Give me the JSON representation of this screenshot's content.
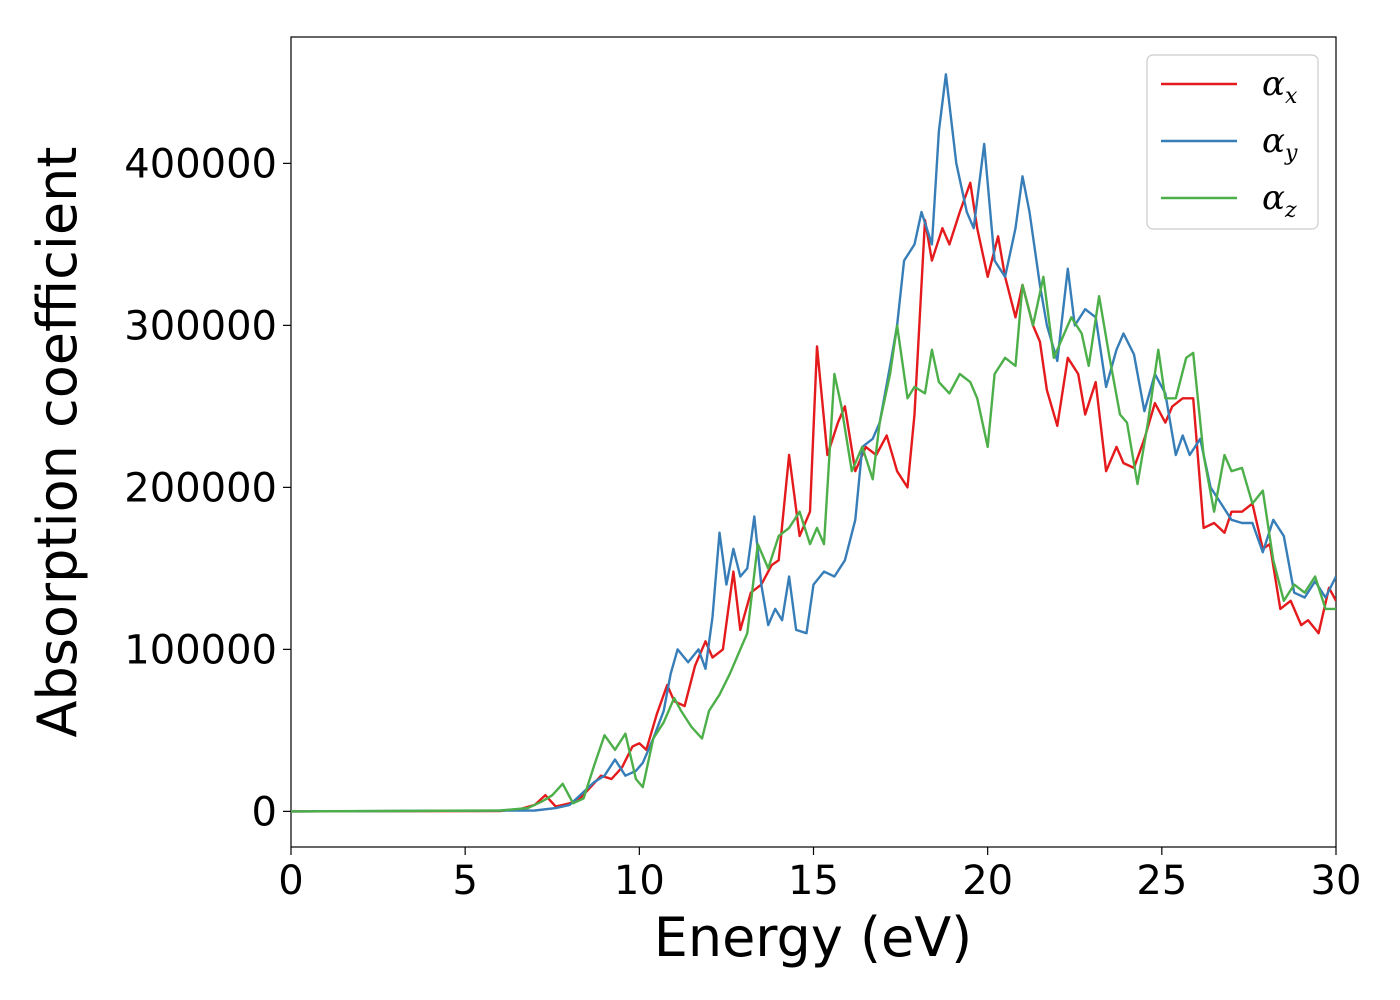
{
  "chart_data": {
    "type": "line",
    "title": "",
    "xlabel": "Energy (eV)",
    "ylabel": "Absorption coefficient",
    "xlim": [
      0,
      30
    ],
    "ylim": [
      -22000,
      478000
    ],
    "xticks": [
      0,
      5,
      10,
      15,
      20,
      25,
      30
    ],
    "xtick_labels": [
      "0",
      "5",
      "10",
      "15",
      "20",
      "25",
      "30"
    ],
    "yticks": [
      0,
      100000,
      200000,
      300000,
      400000
    ],
    "ytick_labels": [
      "0",
      "100000",
      "200000",
      "300000",
      "400000"
    ],
    "grid": false,
    "legend_position": "top-right",
    "series": [
      {
        "name": "α_x",
        "label_main": "α",
        "label_sub": "x",
        "color": "#e41a1c",
        "x": [
          0,
          6,
          6.6,
          7,
          7.3,
          7.6,
          8,
          8.3,
          8.6,
          8.9,
          9.2,
          9.5,
          9.8,
          10.0,
          10.2,
          10.5,
          10.8,
          11.0,
          11.3,
          11.6,
          11.9,
          12.1,
          12.4,
          12.7,
          12.9,
          13.2,
          13.5,
          13.8,
          14.0,
          14.3,
          14.6,
          14.9,
          15.1,
          15.4,
          15.7,
          15.9,
          16.2,
          16.5,
          16.8,
          17.1,
          17.4,
          17.7,
          17.9,
          18.2,
          18.4,
          18.7,
          18.9,
          19.2,
          19.5,
          19.7,
          20.0,
          20.3,
          20.5,
          20.8,
          21.0,
          21.3,
          21.5,
          21.7,
          22.0,
          22.3,
          22.6,
          22.8,
          23.1,
          23.4,
          23.7,
          23.9,
          24.2,
          24.5,
          24.8,
          25.1,
          25.3,
          25.6,
          25.9,
          26.2,
          26.5,
          26.8,
          27.0,
          27.3,
          27.6,
          27.9,
          28.1,
          28.4,
          28.7,
          29.0,
          29.2,
          29.5,
          29.8,
          30.0
        ],
        "y": [
          0,
          200,
          1500,
          4000,
          10000,
          3000,
          5000,
          8000,
          15000,
          22000,
          20000,
          27000,
          40000,
          42000,
          38000,
          60000,
          78000,
          68000,
          65000,
          90000,
          105000,
          95000,
          100000,
          148000,
          112000,
          135000,
          140000,
          152000,
          155000,
          220000,
          170000,
          185000,
          287000,
          220000,
          240000,
          250000,
          210000,
          225000,
          220000,
          232000,
          210000,
          200000,
          245000,
          365000,
          340000,
          360000,
          350000,
          370000,
          388000,
          360000,
          330000,
          355000,
          330000,
          305000,
          325000,
          300000,
          290000,
          260000,
          238000,
          280000,
          270000,
          245000,
          265000,
          210000,
          225000,
          215000,
          212000,
          230000,
          252000,
          240000,
          250000,
          255000,
          255000,
          175000,
          178000,
          172000,
          185000,
          185000,
          190000,
          162000,
          165000,
          125000,
          130000,
          115000,
          118000,
          110000,
          138000,
          130000
        ]
      },
      {
        "name": "α_y",
        "label_main": "α",
        "label_sub": "y",
        "color": "#377eb8",
        "x": [
          0,
          7,
          7.6,
          8.0,
          8.3,
          8.7,
          9.0,
          9.3,
          9.6,
          9.9,
          10.1,
          10.4,
          10.7,
          10.9,
          11.1,
          11.4,
          11.7,
          11.9,
          12.1,
          12.3,
          12.5,
          12.7,
          12.9,
          13.1,
          13.3,
          13.5,
          13.7,
          13.9,
          14.1,
          14.3,
          14.5,
          14.8,
          15.0,
          15.3,
          15.6,
          15.9,
          16.2,
          16.4,
          16.7,
          16.9,
          17.2,
          17.4,
          17.6,
          17.9,
          18.1,
          18.4,
          18.6,
          18.8,
          19.1,
          19.4,
          19.6,
          19.9,
          20.2,
          20.5,
          20.8,
          21.0,
          21.2,
          21.5,
          21.7,
          22.0,
          22.3,
          22.5,
          22.8,
          23.1,
          23.4,
          23.7,
          23.9,
          24.2,
          24.5,
          24.8,
          25.1,
          25.4,
          25.6,
          25.8,
          26.1,
          26.4,
          26.7,
          27.0,
          27.3,
          27.6,
          27.9,
          28.2,
          28.5,
          28.8,
          29.1,
          29.4,
          29.7,
          30.0
        ],
        "y": [
          0,
          500,
          2000,
          4000,
          10000,
          18000,
          22000,
          32000,
          22000,
          25000,
          30000,
          45000,
          62000,
          85000,
          100000,
          92000,
          100000,
          88000,
          120000,
          172000,
          140000,
          162000,
          145000,
          150000,
          182000,
          140000,
          115000,
          125000,
          118000,
          145000,
          112000,
          110000,
          140000,
          148000,
          145000,
          155000,
          180000,
          225000,
          230000,
          240000,
          275000,
          300000,
          340000,
          350000,
          370000,
          350000,
          420000,
          455000,
          400000,
          370000,
          360000,
          412000,
          340000,
          330000,
          360000,
          392000,
          370000,
          325000,
          300000,
          278000,
          335000,
          300000,
          310000,
          305000,
          262000,
          285000,
          295000,
          282000,
          247000,
          270000,
          258000,
          220000,
          232000,
          220000,
          230000,
          200000,
          190000,
          180000,
          178000,
          178000,
          160000,
          180000,
          170000,
          135000,
          132000,
          142000,
          132000,
          145000
        ]
      },
      {
        "name": "α_z",
        "label_main": "α",
        "label_sub": "z",
        "color": "#4daf4a",
        "x": [
          0,
          6,
          6.8,
          7.2,
          7.5,
          7.8,
          8.1,
          8.4,
          8.7,
          9.0,
          9.3,
          9.6,
          9.9,
          10.1,
          10.4,
          10.7,
          11.0,
          11.2,
          11.5,
          11.8,
          12.0,
          12.3,
          12.6,
          12.9,
          13.1,
          13.4,
          13.7,
          14.0,
          14.3,
          14.6,
          14.9,
          15.1,
          15.3,
          15.6,
          15.8,
          16.1,
          16.4,
          16.7,
          16.9,
          17.2,
          17.4,
          17.7,
          17.9,
          18.2,
          18.4,
          18.6,
          18.9,
          19.2,
          19.5,
          19.7,
          20.0,
          20.2,
          20.5,
          20.8,
          21.0,
          21.3,
          21.6,
          21.9,
          22.1,
          22.4,
          22.7,
          22.9,
          23.2,
          23.5,
          23.8,
          24.0,
          24.3,
          24.6,
          24.9,
          25.1,
          25.4,
          25.7,
          25.9,
          26.2,
          26.5,
          26.8,
          27.0,
          27.3,
          27.6,
          27.9,
          28.2,
          28.5,
          28.8,
          29.1,
          29.4,
          29.7,
          30.0
        ],
        "y": [
          0,
          500,
          2000,
          6000,
          10000,
          17000,
          5000,
          8000,
          28000,
          47000,
          38000,
          48000,
          20000,
          15000,
          45000,
          55000,
          70000,
          62000,
          52000,
          45000,
          62000,
          72000,
          85000,
          100000,
          110000,
          165000,
          150000,
          170000,
          175000,
          185000,
          165000,
          175000,
          165000,
          270000,
          250000,
          210000,
          225000,
          205000,
          240000,
          270000,
          300000,
          255000,
          262000,
          258000,
          285000,
          265000,
          258000,
          270000,
          265000,
          255000,
          225000,
          270000,
          280000,
          275000,
          325000,
          300000,
          330000,
          280000,
          290000,
          305000,
          295000,
          275000,
          318000,
          280000,
          245000,
          240000,
          202000,
          240000,
          285000,
          255000,
          255000,
          280000,
          283000,
          220000,
          185000,
          220000,
          210000,
          212000,
          190000,
          198000,
          155000,
          130000,
          140000,
          135000,
          145000,
          125000,
          125000
        ]
      }
    ]
  }
}
